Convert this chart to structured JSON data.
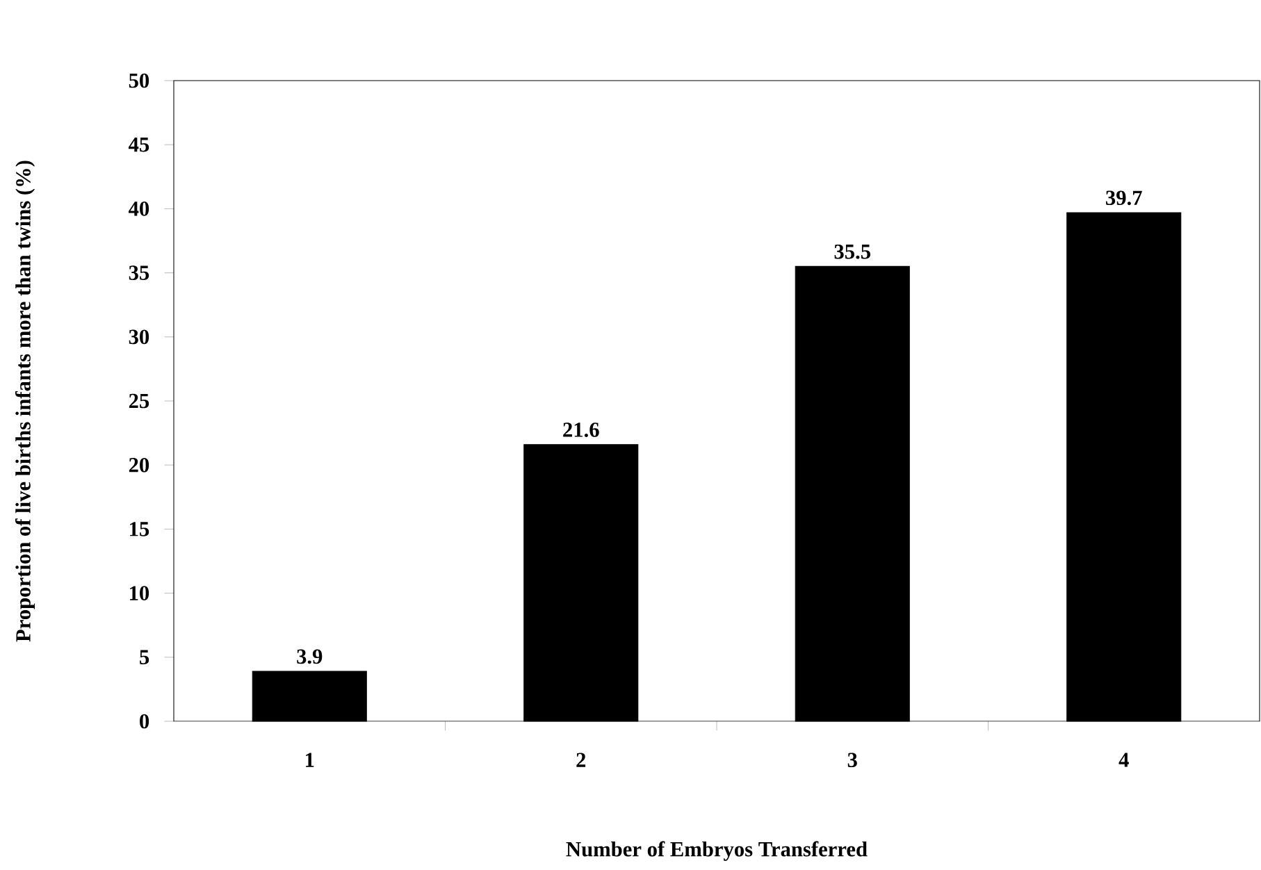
{
  "chart_data": {
    "type": "bar",
    "xlabel": "Number of Embryos Transferred",
    "ylabel": "Proportion of live births infants more than twins (%)",
    "categories": [
      "1",
      "2",
      "3",
      "4"
    ],
    "values": [
      3.9,
      21.6,
      35.5,
      39.7
    ],
    "color": "#000000",
    "ylim": [
      0,
      50
    ],
    "yticks": [
      0,
      5,
      10,
      15,
      20,
      25,
      30,
      35,
      40,
      45,
      50
    ],
    "data_labels": true
  }
}
